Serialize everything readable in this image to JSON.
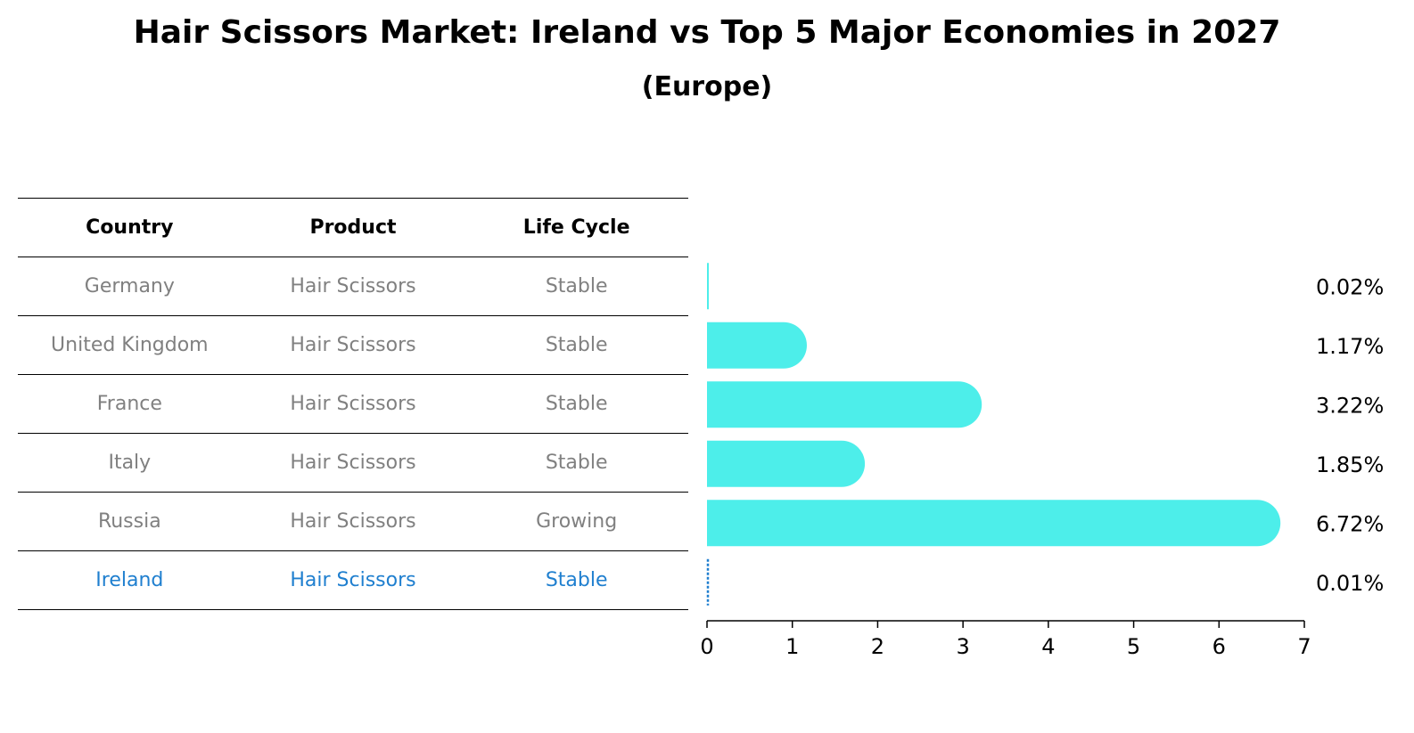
{
  "chart_data": {
    "type": "bar",
    "orientation": "horizontal",
    "title": "Hair Scissors Market: Ireland vs Top 5 Major Economies in 2027",
    "subtitle": "(Europe)",
    "table": {
      "headers": [
        "Country",
        "Product",
        "Life Cycle"
      ],
      "rows": [
        {
          "country": "Germany",
          "product": "Hair Scissors",
          "life_cycle": "Stable"
        },
        {
          "country": "United Kingdom",
          "product": "Hair Scissors",
          "life_cycle": "Stable"
        },
        {
          "country": "France",
          "product": "Hair Scissors",
          "life_cycle": "Stable"
        },
        {
          "country": "Italy",
          "product": "Hair Scissors",
          "life_cycle": "Stable"
        },
        {
          "country": "Russia",
          "product": "Hair Scissors",
          "life_cycle": "Growing"
        },
        {
          "country": "Ireland",
          "product": "Hair Scissors",
          "life_cycle": "Stable"
        }
      ]
    },
    "categories": [
      "Germany",
      "United Kingdom",
      "France",
      "Italy",
      "Russia",
      "Ireland"
    ],
    "values": [
      0.02,
      1.17,
      3.22,
      1.85,
      6.72,
      0.01
    ],
    "value_labels": [
      "0.02%",
      "1.17%",
      "3.22%",
      "1.85%",
      "6.72%",
      "0.01%"
    ],
    "highlight": "Ireland",
    "xlim": [
      0,
      7
    ],
    "xticks": [
      "0",
      "1",
      "2",
      "3",
      "4",
      "5",
      "6",
      "7"
    ],
    "grid": false,
    "colors": {
      "bar": "#4deeea",
      "highlight_line": "#1f7fcf",
      "highlight_text": "#1f7fcf",
      "text_muted": "#808080"
    }
  }
}
